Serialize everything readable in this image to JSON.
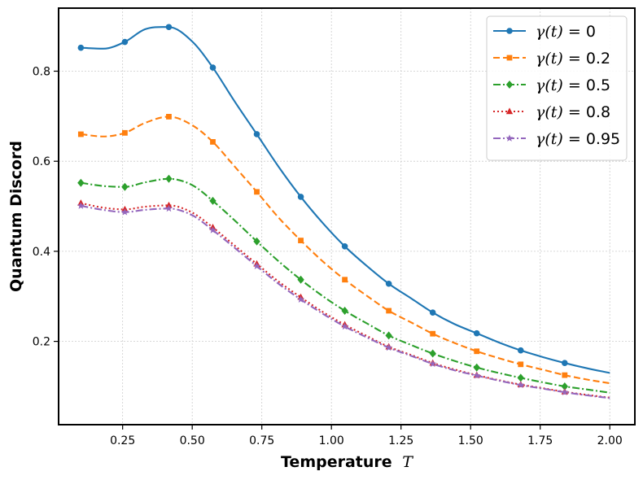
{
  "chart_data": {
    "type": "line",
    "title": "",
    "xlabel": "Temperature",
    "xlabel_symbol": "T",
    "ylabel": "Quantum Discord",
    "xlim": [
      0.02,
      2.09
    ],
    "ylim": [
      0.015,
      0.94
    ],
    "xticks": [
      0.25,
      0.5,
      0.75,
      1.0,
      1.25,
      1.5,
      1.75,
      2.0
    ],
    "xtick_labels": [
      "0.25",
      "0.50",
      "0.75",
      "1.00",
      "1.25",
      "1.50",
      "1.75",
      "2.00"
    ],
    "yticks": [
      0.2,
      0.4,
      0.6,
      0.8
    ],
    "ytick_labels": [
      "0.2",
      "0.4",
      "0.6",
      "0.8"
    ],
    "grid": true,
    "legend_position": "top-right",
    "marker_x": [
      0.1,
      0.258,
      0.416,
      0.574,
      0.732,
      0.89,
      1.048,
      1.206,
      1.364,
      1.522,
      1.68,
      1.838
    ],
    "series": [
      {
        "name": "γ(t) = 0",
        "legend_prefix": "γ(t) = ",
        "legend_value": "0",
        "color": "#1f77b4",
        "dash": "",
        "marker": "circle",
        "x": [
          0.1,
          0.18,
          0.258,
          0.33,
          0.416,
          0.5,
          0.574,
          0.65,
          0.732,
          0.81,
          0.89,
          0.97,
          1.048,
          1.13,
          1.206,
          1.29,
          1.364,
          1.44,
          1.522,
          1.6,
          1.68,
          1.76,
          1.838,
          1.92,
          2.0
        ],
        "values": [
          0.852,
          0.85,
          0.865,
          0.893,
          0.898,
          0.866,
          0.808,
          0.735,
          0.66,
          0.588,
          0.521,
          0.462,
          0.411,
          0.366,
          0.328,
          0.294,
          0.264,
          0.239,
          0.218,
          0.198,
          0.18,
          0.165,
          0.152,
          0.14,
          0.13
        ]
      },
      {
        "name": "γ(t) = 0.2",
        "legend_prefix": "γ(t) = ",
        "legend_value": "0.2",
        "color": "#ff7f0e",
        "dash": "8,4",
        "marker": "square",
        "x": [
          0.1,
          0.18,
          0.258,
          0.33,
          0.416,
          0.5,
          0.574,
          0.65,
          0.732,
          0.81,
          0.89,
          0.97,
          1.048,
          1.13,
          1.206,
          1.29,
          1.364,
          1.44,
          1.522,
          1.6,
          1.68,
          1.76,
          1.838,
          1.92,
          2.0
        ],
        "values": [
          0.66,
          0.655,
          0.663,
          0.685,
          0.699,
          0.68,
          0.643,
          0.59,
          0.532,
          0.475,
          0.424,
          0.377,
          0.337,
          0.3,
          0.268,
          0.241,
          0.217,
          0.197,
          0.178,
          0.163,
          0.149,
          0.137,
          0.125,
          0.115,
          0.107
        ]
      },
      {
        "name": "γ(t) = 0.5",
        "legend_prefix": "γ(t) = ",
        "legend_value": "0.5",
        "color": "#2ca02c",
        "dash": "9,3,2,3",
        "marker": "diamond",
        "x": [
          0.1,
          0.18,
          0.258,
          0.33,
          0.416,
          0.5,
          0.574,
          0.65,
          0.732,
          0.81,
          0.89,
          0.97,
          1.048,
          1.13,
          1.206,
          1.29,
          1.364,
          1.44,
          1.522,
          1.6,
          1.68,
          1.76,
          1.838,
          1.92,
          2.0
        ],
        "values": [
          0.552,
          0.545,
          0.543,
          0.553,
          0.561,
          0.547,
          0.512,
          0.47,
          0.422,
          0.378,
          0.337,
          0.3,
          0.268,
          0.239,
          0.213,
          0.191,
          0.173,
          0.157,
          0.142,
          0.13,
          0.119,
          0.109,
          0.1,
          0.093,
          0.086
        ]
      },
      {
        "name": "γ(t) = 0.8",
        "legend_prefix": "γ(t) = ",
        "legend_value": "0.8",
        "color": "#d62728",
        "dash": "2,3",
        "marker": "triangle",
        "x": [
          0.1,
          0.18,
          0.258,
          0.33,
          0.416,
          0.5,
          0.574,
          0.65,
          0.732,
          0.81,
          0.89,
          0.97,
          1.048,
          1.13,
          1.206,
          1.29,
          1.364,
          1.44,
          1.522,
          1.6,
          1.68,
          1.76,
          1.838,
          1.92,
          2.0
        ],
        "values": [
          0.507,
          0.497,
          0.493,
          0.499,
          0.502,
          0.486,
          0.453,
          0.414,
          0.372,
          0.333,
          0.298,
          0.265,
          0.237,
          0.211,
          0.188,
          0.169,
          0.152,
          0.138,
          0.125,
          0.114,
          0.104,
          0.096,
          0.088,
          0.081,
          0.075
        ]
      },
      {
        "name": "γ(t) = 0.95",
        "legend_prefix": "γ(t) = ",
        "legend_value": "0.95",
        "color": "#9467bd",
        "dash": "9,3,2,3",
        "marker": "star",
        "x": [
          0.1,
          0.18,
          0.258,
          0.33,
          0.416,
          0.5,
          0.574,
          0.65,
          0.732,
          0.81,
          0.89,
          0.97,
          1.048,
          1.13,
          1.206,
          1.29,
          1.364,
          1.44,
          1.522,
          1.6,
          1.68,
          1.76,
          1.838,
          1.92,
          2.0
        ],
        "values": [
          0.501,
          0.492,
          0.487,
          0.492,
          0.495,
          0.48,
          0.447,
          0.409,
          0.367,
          0.328,
          0.293,
          0.261,
          0.233,
          0.208,
          0.186,
          0.167,
          0.15,
          0.136,
          0.124,
          0.113,
          0.103,
          0.095,
          0.087,
          0.08,
          0.074
        ]
      }
    ]
  }
}
